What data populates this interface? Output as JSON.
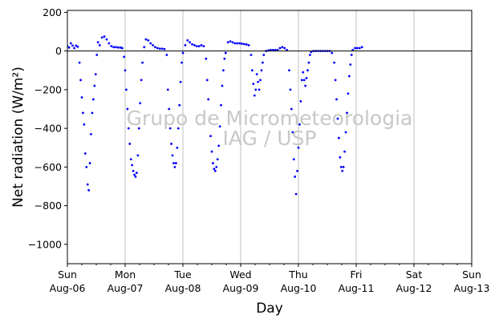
{
  "chart_data": {
    "type": "scatter",
    "xlabel": "Day",
    "ylabel": "Net radiation (W/m²)",
    "watermark": [
      "Grupo de Micrometeorologia",
      "IAG / USP"
    ],
    "xlim": [
      0,
      7
    ],
    "ylim": [
      -1100,
      210
    ],
    "yticks": [
      200,
      0,
      -200,
      -400,
      -600,
      -800,
      -1000
    ],
    "ytick_labels": [
      "200",
      "0",
      "−200",
      "−400",
      "−600",
      "−800",
      "−1000"
    ],
    "xticks": [
      {
        "x": 0,
        "line1": "Sun",
        "line2": "Aug-06"
      },
      {
        "x": 1,
        "line1": "Mon",
        "line2": "Aug-07"
      },
      {
        "x": 2,
        "line1": "Tue",
        "line2": "Aug-08"
      },
      {
        "x": 3,
        "line1": "Wed",
        "line2": "Aug-09"
      },
      {
        "x": 4,
        "line1": "Thu",
        "line2": "Aug-10"
      },
      {
        "x": 5,
        "line1": "Fri",
        "line2": "Aug-11"
      },
      {
        "x": 6,
        "line1": "Sat",
        "line2": "Aug-12"
      },
      {
        "x": 7,
        "line1": "Sun",
        "line2": "Aug-13"
      }
    ],
    "grid": "vertical at day boundaries",
    "zero_line": true,
    "series_color": "#0000ff",
    "series": [
      {
        "x_unit": "days since Sun Aug-06 00:00",
        "points": [
          [
            0.0,
            25
          ],
          [
            0.03,
            18
          ],
          [
            0.06,
            40
          ],
          [
            0.09,
            28
          ],
          [
            0.12,
            15
          ],
          [
            0.15,
            28
          ],
          [
            0.18,
            22
          ],
          [
            0.21,
            -60
          ],
          [
            0.23,
            -150
          ],
          [
            0.25,
            -240
          ],
          [
            0.27,
            -320
          ],
          [
            0.29,
            -380
          ],
          [
            0.31,
            -530
          ],
          [
            0.33,
            -600
          ],
          [
            0.35,
            -690
          ],
          [
            0.37,
            -720
          ],
          [
            0.39,
            -580
          ],
          [
            0.41,
            -430
          ],
          [
            0.43,
            -320
          ],
          [
            0.45,
            -250
          ],
          [
            0.47,
            -180
          ],
          [
            0.49,
            -120
          ],
          [
            0.51,
            -20
          ],
          [
            0.53,
            45
          ],
          [
            0.56,
            30
          ],
          [
            0.6,
            70
          ],
          [
            0.64,
            75
          ],
          [
            0.68,
            60
          ],
          [
            0.72,
            40
          ],
          [
            0.76,
            25
          ],
          [
            0.8,
            20
          ],
          [
            0.84,
            20
          ],
          [
            0.88,
            18
          ],
          [
            0.92,
            18
          ],
          [
            0.95,
            15
          ],
          [
            0.98,
            -30
          ],
          [
            1.0,
            -100
          ],
          [
            1.02,
            -200
          ],
          [
            1.04,
            -300
          ],
          [
            1.06,
            -400
          ],
          [
            1.08,
            -480
          ],
          [
            1.1,
            -560
          ],
          [
            1.12,
            -590
          ],
          [
            1.14,
            -620
          ],
          [
            1.16,
            -640
          ],
          [
            1.18,
            -650
          ],
          [
            1.2,
            -630
          ],
          [
            1.22,
            -540
          ],
          [
            1.24,
            -400
          ],
          [
            1.26,
            -270
          ],
          [
            1.28,
            -150
          ],
          [
            1.3,
            -60
          ],
          [
            1.33,
            20
          ],
          [
            1.36,
            60
          ],
          [
            1.4,
            55
          ],
          [
            1.44,
            40
          ],
          [
            1.48,
            30
          ],
          [
            1.52,
            20
          ],
          [
            1.56,
            15
          ],
          [
            1.6,
            12
          ],
          [
            1.64,
            12
          ],
          [
            1.68,
            10
          ],
          [
            1.72,
            -20
          ],
          [
            1.74,
            -200
          ],
          [
            1.76,
            -300
          ],
          [
            1.78,
            -400
          ],
          [
            1.8,
            -480
          ],
          [
            1.82,
            -540
          ],
          [
            1.84,
            -580
          ],
          [
            1.86,
            -600
          ],
          [
            1.88,
            -580
          ],
          [
            1.9,
            -500
          ],
          [
            1.92,
            -400
          ],
          [
            1.94,
            -280
          ],
          [
            1.96,
            -160
          ],
          [
            1.98,
            -60
          ],
          [
            2.0,
            -10
          ],
          [
            2.04,
            30
          ],
          [
            2.08,
            55
          ],
          [
            2.12,
            45
          ],
          [
            2.16,
            35
          ],
          [
            2.2,
            30
          ],
          [
            2.24,
            25
          ],
          [
            2.28,
            25
          ],
          [
            2.32,
            30
          ],
          [
            2.36,
            25
          ],
          [
            2.4,
            -40
          ],
          [
            2.42,
            -150
          ],
          [
            2.44,
            -250
          ],
          [
            2.46,
            -350
          ],
          [
            2.48,
            -440
          ],
          [
            2.5,
            -520
          ],
          [
            2.52,
            -580
          ],
          [
            2.54,
            -610
          ],
          [
            2.56,
            -620
          ],
          [
            2.58,
            -600
          ],
          [
            2.6,
            -560
          ],
          [
            2.62,
            -490
          ],
          [
            2.64,
            -390
          ],
          [
            2.66,
            -280
          ],
          [
            2.68,
            -180
          ],
          [
            2.7,
            -100
          ],
          [
            2.72,
            -40
          ],
          [
            2.74,
            -10
          ],
          [
            2.78,
            45
          ],
          [
            2.82,
            50
          ],
          [
            2.86,
            45
          ],
          [
            2.9,
            40
          ],
          [
            2.94,
            40
          ],
          [
            2.98,
            40
          ],
          [
            3.02,
            38
          ],
          [
            3.06,
            36
          ],
          [
            3.1,
            34
          ],
          [
            3.14,
            30
          ],
          [
            3.18,
            -20
          ],
          [
            3.2,
            -100
          ],
          [
            3.22,
            -170
          ],
          [
            3.24,
            -230
          ],
          [
            3.26,
            -200
          ],
          [
            3.28,
            -120
          ],
          [
            3.3,
            -160
          ],
          [
            3.32,
            -200
          ],
          [
            3.34,
            -150
          ],
          [
            3.36,
            -100
          ],
          [
            3.38,
            -60
          ],
          [
            3.4,
            -20
          ],
          [
            3.44,
            0
          ],
          [
            3.48,
            3
          ],
          [
            3.52,
            5
          ],
          [
            3.56,
            5
          ],
          [
            3.6,
            5
          ],
          [
            3.64,
            5
          ],
          [
            3.68,
            15
          ],
          [
            3.72,
            20
          ],
          [
            3.76,
            15
          ],
          [
            3.8,
            5
          ],
          [
            3.84,
            -100
          ],
          [
            3.86,
            -200
          ],
          [
            3.88,
            -300
          ],
          [
            3.9,
            -420
          ],
          [
            3.92,
            -560
          ],
          [
            3.94,
            -650
          ],
          [
            3.96,
            -740
          ],
          [
            3.98,
            -620
          ],
          [
            4.0,
            -500
          ],
          [
            4.02,
            -380
          ],
          [
            4.04,
            -260
          ],
          [
            4.06,
            -150
          ],
          [
            4.08,
            -110
          ],
          [
            4.1,
            -150
          ],
          [
            4.12,
            -180
          ],
          [
            4.14,
            -140
          ],
          [
            4.16,
            -100
          ],
          [
            4.18,
            -60
          ],
          [
            4.2,
            -20
          ],
          [
            4.22,
            -5
          ],
          [
            4.26,
            0
          ],
          [
            4.3,
            0
          ],
          [
            4.34,
            0
          ],
          [
            4.38,
            0
          ],
          [
            4.42,
            0
          ],
          [
            4.46,
            0
          ],
          [
            4.5,
            0
          ],
          [
            4.54,
            0
          ],
          [
            4.58,
            -10
          ],
          [
            4.62,
            -60
          ],
          [
            4.64,
            -150
          ],
          [
            4.66,
            -250
          ],
          [
            4.68,
            -350
          ],
          [
            4.7,
            -450
          ],
          [
            4.72,
            -550
          ],
          [
            4.74,
            -600
          ],
          [
            4.76,
            -620
          ],
          [
            4.78,
            -600
          ],
          [
            4.8,
            -520
          ],
          [
            4.82,
            -420
          ],
          [
            4.84,
            -320
          ],
          [
            4.86,
            -220
          ],
          [
            4.88,
            -130
          ],
          [
            4.9,
            -70
          ],
          [
            4.92,
            -20
          ],
          [
            4.94,
            5
          ],
          [
            4.98,
            15
          ],
          [
            5.02,
            15
          ],
          [
            5.06,
            15
          ],
          [
            5.1,
            20
          ]
        ]
      }
    ]
  }
}
